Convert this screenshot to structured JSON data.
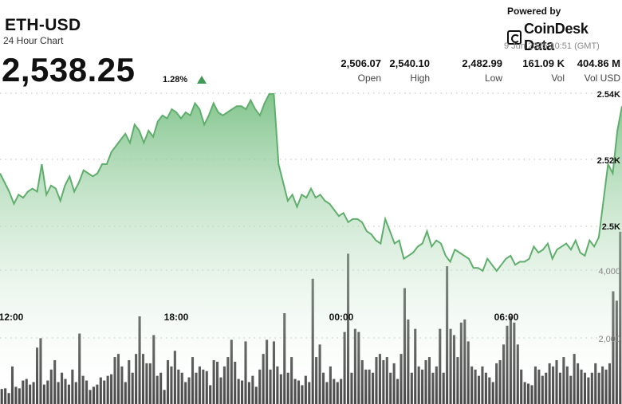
{
  "header": {
    "symbol": "ETH-USD",
    "subtitle": "24 Hour Chart",
    "price": "2,538.25",
    "change": "1.28%",
    "powered_by": "Powered by",
    "brand": "CoinDesk Data",
    "date": "9 Jun 2025 10:51 (GMT)"
  },
  "stats": [
    {
      "value": "2,506.07",
      "label": "Open"
    },
    {
      "value": "2,540.10",
      "label": "High"
    },
    {
      "value": "2,482.99",
      "label": "Low"
    },
    {
      "value": "161.09 K",
      "label": "Vol"
    },
    {
      "value": "404.86 M",
      "label": "Vol USD"
    }
  ],
  "colors": {
    "line": "#5fae6c",
    "area_top": "#7cc287",
    "bar": "#2b2b2b",
    "up_arrow": "#3f9a55",
    "grid": "#bbbbbb"
  },
  "chart_data": {
    "type": "area",
    "x_tick_labels": [
      "12:00",
      "18:00",
      "00:00",
      "06:00"
    ],
    "y_tick_labels": [
      "2.54K",
      "2.52K",
      "2.5K"
    ],
    "volume_tick_labels": [
      "4,000",
      "2,000"
    ],
    "price_series": [
      2516,
      2513,
      2510,
      2506,
      2509,
      2508,
      2510,
      2511,
      2510,
      2519,
      2509,
      2512,
      2511,
      2507,
      2512,
      2515,
      2510,
      2513,
      2517,
      2516,
      2515,
      2516,
      2519,
      2519,
      2523,
      2525,
      2527,
      2529,
      2526,
      2532,
      2530,
      2526,
      2530,
      2528,
      2533,
      2535,
      2534,
      2537,
      2536,
      2534,
      2536,
      2535,
      2539,
      2537,
      2532,
      2535,
      2539,
      2536,
      2535,
      2536,
      2537,
      2538,
      2538,
      2537,
      2540,
      2537,
      2535,
      2539,
      2542,
      2542,
      2519,
      2513,
      2507,
      2509,
      2505,
      2509,
      2508,
      2511,
      2508,
      2509,
      2507,
      2506,
      2504,
      2502,
      2503,
      2500,
      2501,
      2501,
      2500,
      2497,
      2496,
      2494,
      2493,
      2501,
      2497,
      2493,
      2494,
      2488,
      2489,
      2490,
      2492,
      2493,
      2497,
      2492,
      2494,
      2493,
      2489,
      2487,
      2491,
      2490,
      2489,
      2488,
      2485,
      2485,
      2484,
      2488,
      2486,
      2484,
      2486,
      2488,
      2489,
      2486,
      2487,
      2487,
      2488,
      2492,
      2490,
      2491,
      2493,
      2488,
      2491,
      2492,
      2493,
      2491,
      2494,
      2490,
      2489,
      2494,
      2492,
      2495,
      2507,
      2519,
      2516,
      2530,
      2538
    ]
  },
  "volume_data": {
    "type": "bar",
    "values": [
      480,
      500,
      350,
      1200,
      550,
      500,
      750,
      800,
      620,
      700,
      1800,
      2100,
      620,
      750,
      1100,
      1400,
      700,
      1000,
      800,
      620,
      1100,
      700,
      2250,
      900,
      750,
      450,
      550,
      620,
      850,
      750,
      900,
      950,
      1500,
      1600,
      1200,
      700,
      1400,
      1000,
      1600,
      2800,
      1600,
      1300,
      1300,
      2200,
      900,
      1000,
      450,
      1400,
      1200,
      1700,
      1100,
      1000,
      700,
      850,
      1500,
      1000,
      1200,
      1100,
      1050,
      600,
      1400,
      1350,
      850,
      1200,
      1500,
      2050,
      1350,
      800,
      750,
      2000,
      700,
      900,
      550,
      1100,
      1600,
      2050,
      1100,
      2000,
      1200,
      950,
      2900,
      1000,
      1500,
      800,
      750,
      600,
      900,
      700,
      4000,
      1500,
      1900,
      1000,
      700,
      1200,
      800,
      700,
      800,
      2300,
      4800,
      1000,
      2400,
      2300,
      1400,
      1100,
      1100,
      1000,
      1500,
      1600,
      1400,
      1500,
      1000,
      1300,
      800,
      1600,
      3700,
      2700,
      1000,
      2400,
      1200,
      1100,
      1400,
      1500,
      1000,
      1200,
      2400,
      1000,
      4400,
      2400,
      2200,
      1500,
      2600,
      2700,
      2000,
      1200,
      1100,
      900,
      1200,
      1000,
      850,
      700,
      1300,
      1400,
      1900,
      2500,
      2800,
      2600,
      1900,
      1100,
      700,
      650,
      600,
      1200,
      1100,
      900,
      1000,
      1300,
      1200,
      1400,
      1000,
      1500,
      1200,
      900,
      1600,
      1300,
      1100,
      1000,
      850,
      1000,
      1300,
      1000,
      1200,
      1100,
      1300,
      3600,
      3300,
      5500
    ]
  }
}
